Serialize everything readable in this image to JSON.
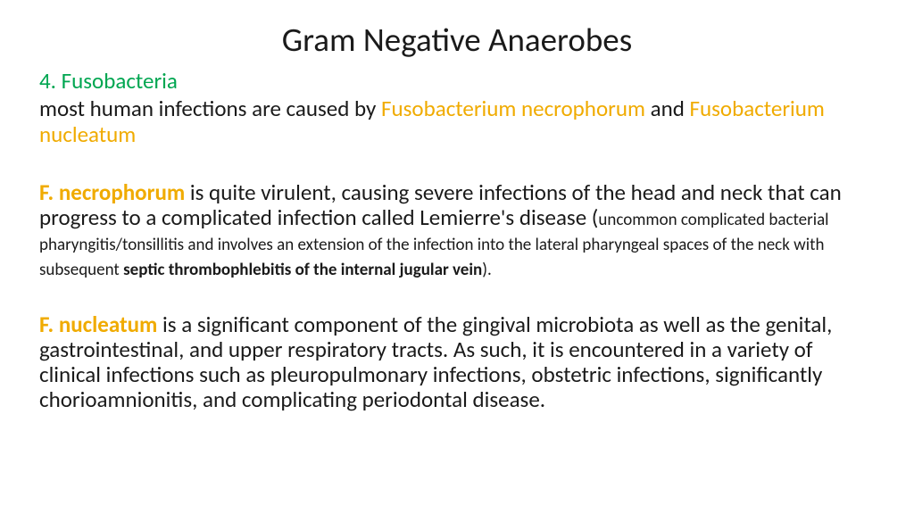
{
  "title": "Gram Negative Anaerobes",
  "subtitle": "4. Fusobacteria",
  "p1_a": "most human infections are caused by ",
  "p1_b": "Fusobacterium necrophorum ",
  "p1_c": "and ",
  "p1_d": "Fusobacterium nucleatum",
  "p2_a": "F. necrophorum ",
  "p2_b": "is quite virulent, causing severe infections of the head and neck that can progress to a complicated infection called Lemierre's disease (",
  "p2_c": "uncommon complicated bacterial pharyngitis/tonsillitis and involves an extension of the infection into the lateral pharyngeal spaces of the neck with subsequent ",
  "p2_d": "septic thrombophlebitis of the internal jugular vein",
  "p2_e": ").",
  "p3_a": "F. nucleatum ",
  "p3_b": "is a significant component of the gingival microbiota as well as the genital, gastrointestinal, and upper respiratory tracts. As such, it is encountered in a variety of clinical infections such as pleuropulmonary infections, obstetric infections, significantly chorioamnionitis, and complicating periodontal disease.",
  "colors": {
    "green": "#00a651",
    "orange": "#f0ab00",
    "text": "#1a1a1a",
    "background": "#ffffff"
  },
  "fonts": {
    "title_size": 37,
    "body_size": 25,
    "small_size": 19
  }
}
